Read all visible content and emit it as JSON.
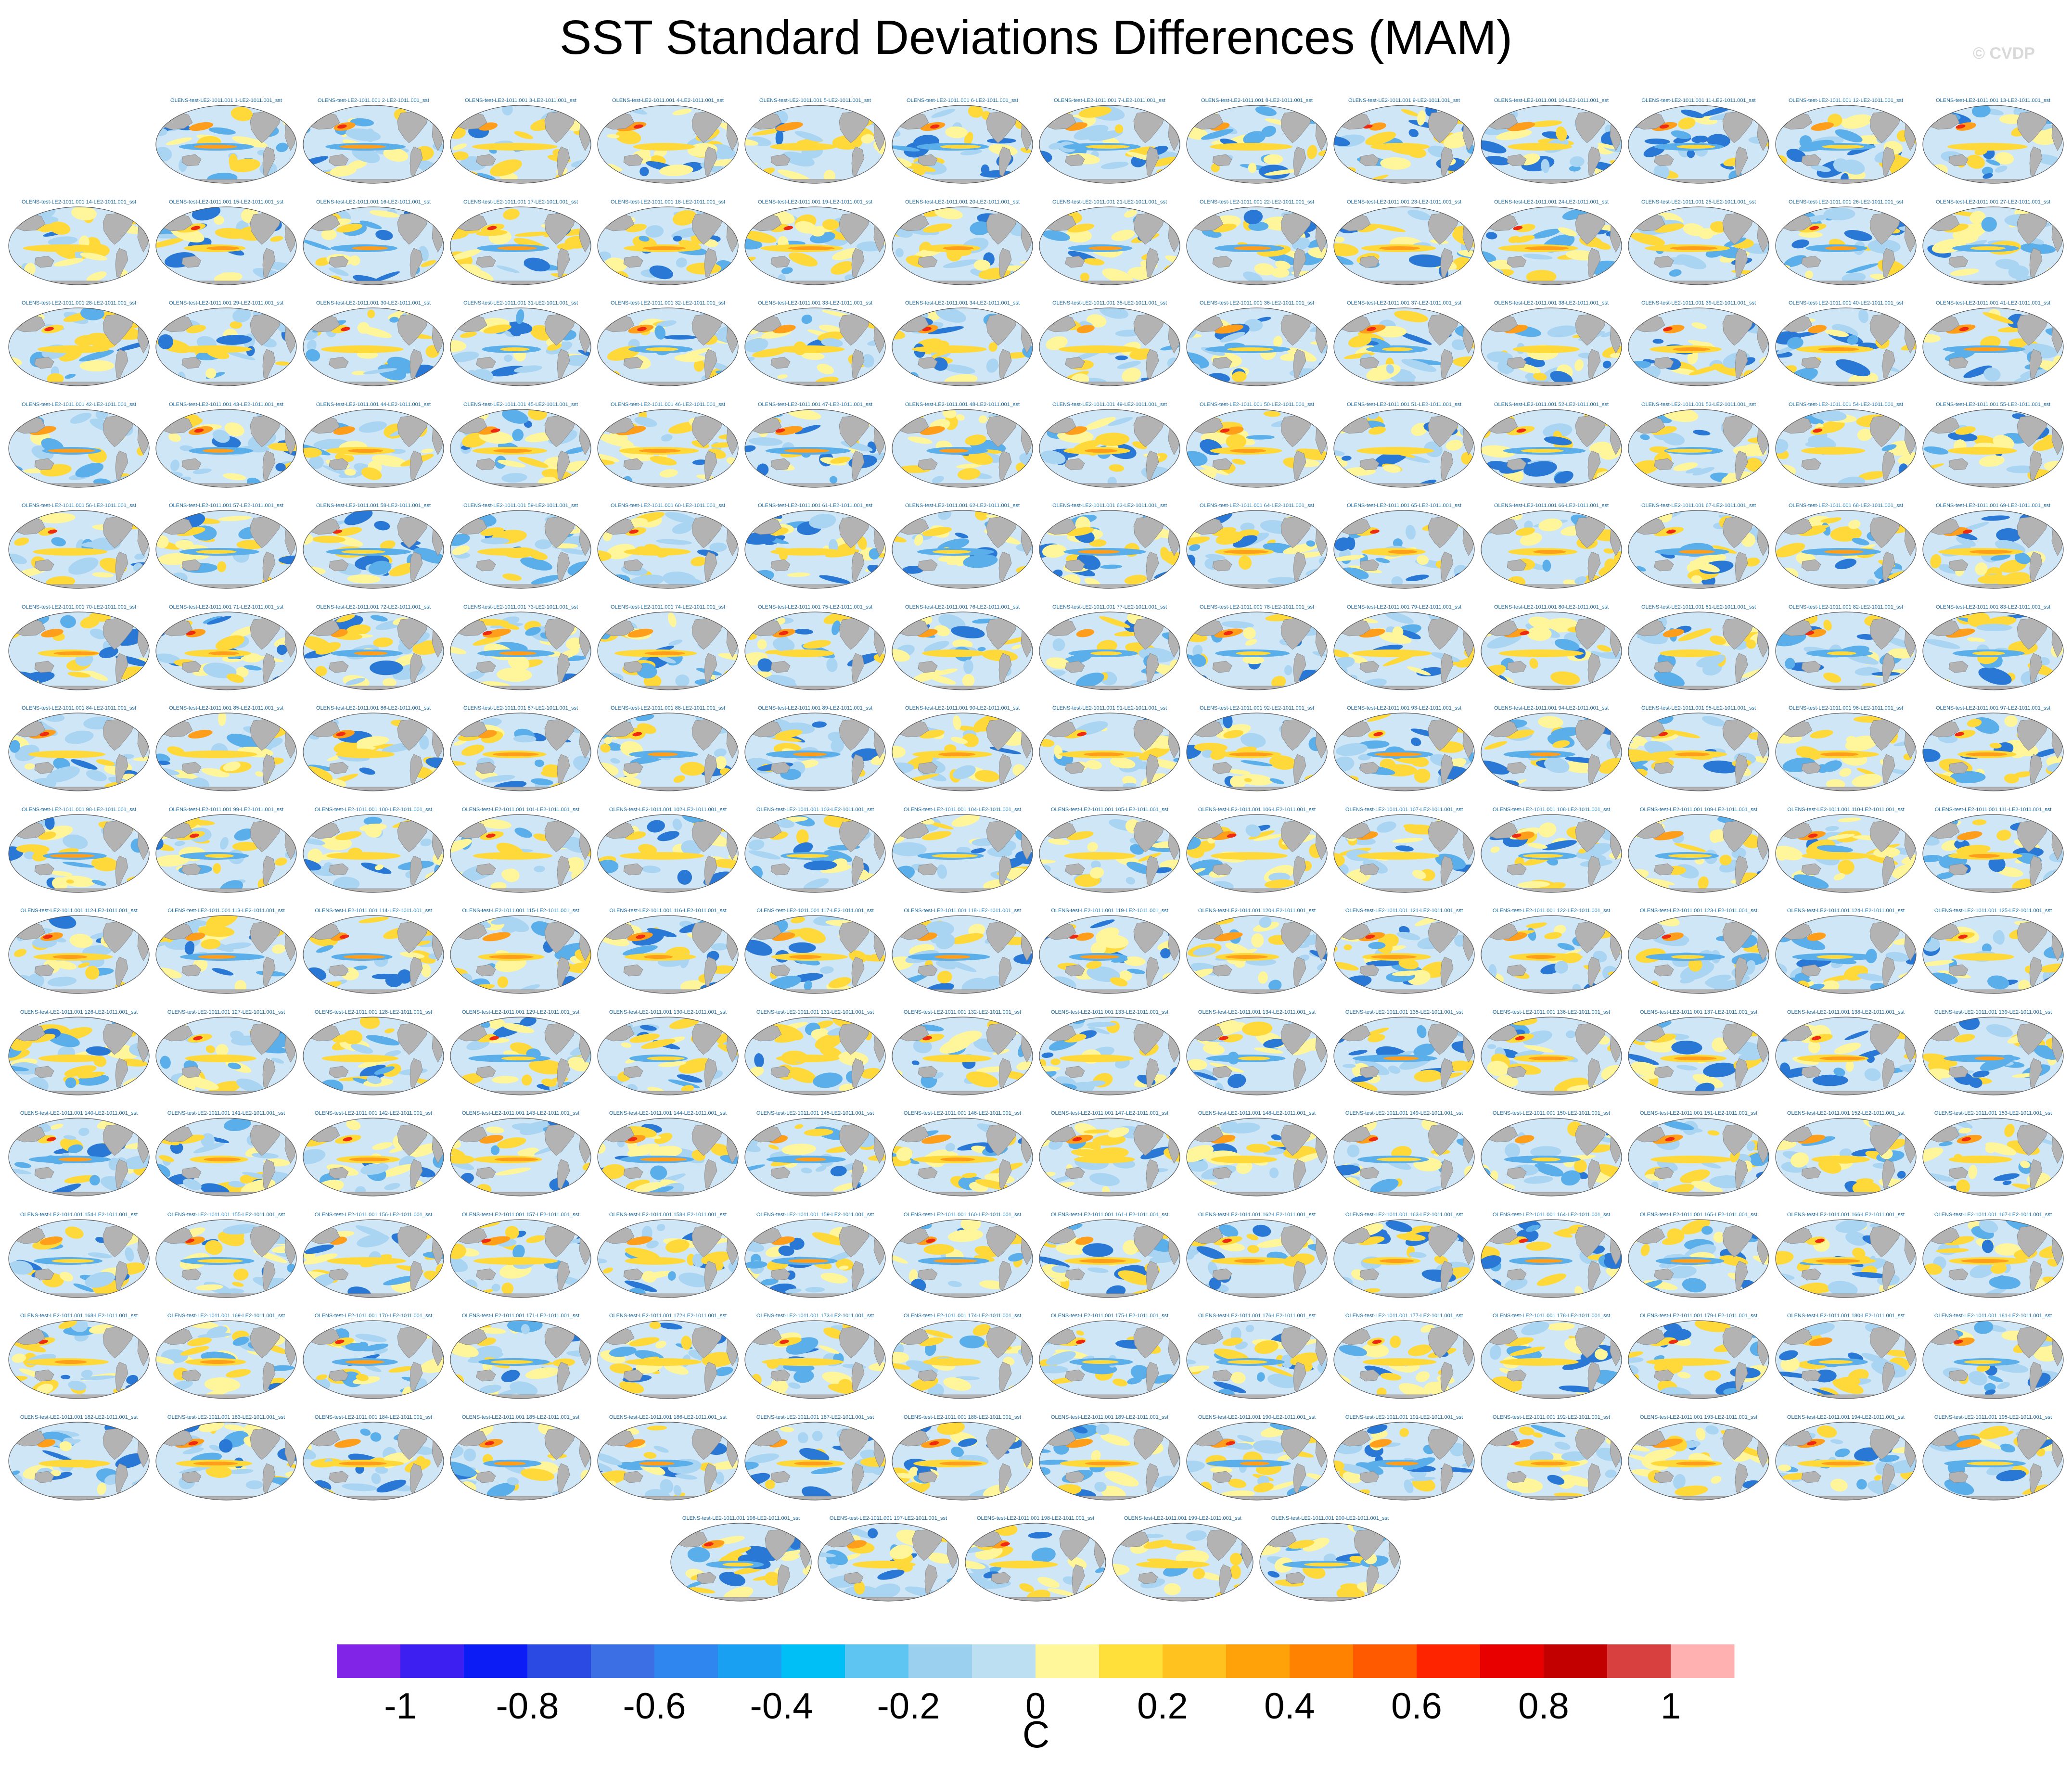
{
  "title": "SST Standard Deviations Differences (MAM)",
  "watermark": "© CVDP",
  "panel_label_prefix": "OLENS-test-LE2-1011.001",
  "panel_label_mid": "-LE2-1011.001_sst",
  "panel_count": 200,
  "colorbar": {
    "unit": "C",
    "tick_labels": [
      "-1",
      "-0.8",
      "-0.6",
      "-0.4",
      "-0.2",
      "0",
      "0.2",
      "0.4",
      "0.6",
      "0.8",
      "1"
    ],
    "colors": [
      "#8223e8",
      "#3d1ff2",
      "#0b1cf5",
      "#2a4ae3",
      "#3b6fe3",
      "#2f86ee",
      "#1aa0f3",
      "#00bff7",
      "#5ec4f2",
      "#9bd0ee",
      "#bcdff2",
      "#fff79a",
      "#ffe03b",
      "#ffc21f",
      "#ffa20a",
      "#ff8200",
      "#ff5a00",
      "#ff2400",
      "#e80000",
      "#c20000",
      "#d84040",
      "#ffb0b0"
    ]
  },
  "map_colors": {
    "ocean_neutral": "#cfe6f7",
    "land": "#b3b3b3",
    "positive_small": "#fff59a",
    "positive_mid": "#ffd83a",
    "positive_high": "#ff9e1a",
    "positive_max": "#ee2a10",
    "negative_small": "#a9d4f2",
    "negative_mid": "#5aaee9",
    "negative_high": "#2a78d6"
  }
}
